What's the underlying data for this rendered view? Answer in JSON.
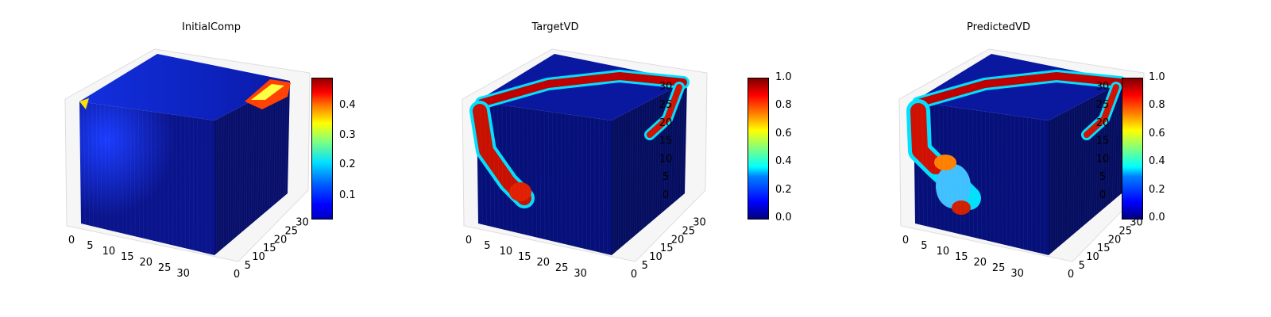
{
  "chart_data": [
    {
      "type": "3d-voxel",
      "title": "InitialComp",
      "x_ticks": [
        "0",
        "5",
        "10",
        "15",
        "20",
        "25",
        "30"
      ],
      "y_ticks": [
        "0",
        "5",
        "10",
        "15",
        "20",
        "25",
        "30"
      ],
      "z_ticks": [],
      "colormap": "jet",
      "colorbar": {
        "min": 0.0,
        "max": 0.5,
        "ticks": [
          "0.1",
          "0.2",
          "0.3",
          "0.4"
        ]
      }
    },
    {
      "type": "3d-voxel",
      "title": "TargetVD",
      "x_ticks": [
        "0",
        "5",
        "10",
        "15",
        "20",
        "25",
        "30"
      ],
      "y_ticks": [
        "0",
        "5",
        "10",
        "15",
        "20",
        "25",
        "30"
      ],
      "z_ticks": [
        "0",
        "5",
        "10",
        "15",
        "20",
        "25",
        "30"
      ],
      "colormap": "jet",
      "colorbar": {
        "min": 0.0,
        "max": 1.0,
        "ticks": [
          "0.0",
          "0.2",
          "0.4",
          "0.6",
          "0.8",
          "1.0"
        ]
      }
    },
    {
      "type": "3d-voxel",
      "title": "PredictedVD",
      "x_ticks": [
        "0",
        "5",
        "10",
        "15",
        "20",
        "25",
        "30"
      ],
      "y_ticks": [
        "0",
        "5",
        "10",
        "15",
        "20",
        "25",
        "30"
      ],
      "z_ticks": [
        "0",
        "5",
        "10",
        "15",
        "20",
        "25",
        "30"
      ],
      "colormap": "jet",
      "colorbar": {
        "min": 0.0,
        "max": 1.0,
        "ticks": [
          "0.0",
          "0.2",
          "0.4",
          "0.6",
          "0.8",
          "1.0"
        ]
      }
    }
  ],
  "colors": {
    "low": "#00007f",
    "mid": "#00ffff",
    "high": "#7f0000"
  }
}
